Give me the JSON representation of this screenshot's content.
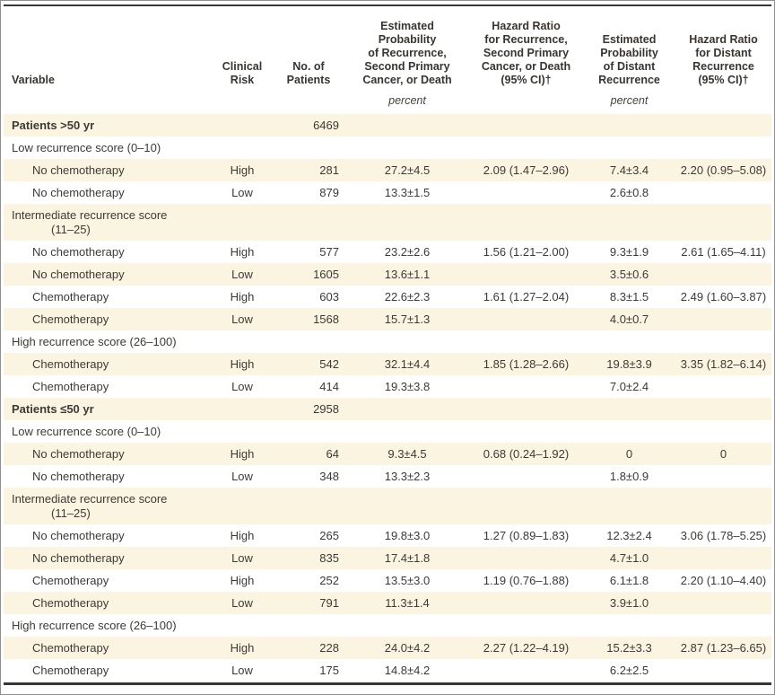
{
  "table": {
    "columns": {
      "variable": "Variable",
      "clinical_risk": "Clinical\nRisk",
      "patients": "No. of\nPatients",
      "ep_recurrence": "Estimated\nProbability\nof Recurrence,\nSecond Primary\nCancer, or Death",
      "hr_recurrence": "Hazard Ratio\nfor Recurrence,\nSecond Primary\nCancer, or Death\n(95% CI)†",
      "ep_distant": "Estimated\nProbability\nof Distant\nRecurrence",
      "hr_distant": "Hazard Ratio\nfor Distant\nRecurrence\n(95% CI)†",
      "unit": "percent"
    },
    "rows": [
      {
        "label": "Patients >50 yr",
        "bold": true,
        "n": "6469",
        "shade": true
      },
      {
        "label": "Low recurrence score (0–10)"
      },
      {
        "label": "No chemotherapy",
        "indent": true,
        "risk": "High",
        "n": "281",
        "ep1": "27.2±4.5",
        "hr1": "2.09 (1.47–2.96)",
        "ep2": "7.4±3.4",
        "hr2": "2.20 (0.95–5.08)",
        "shade": true
      },
      {
        "label": "No chemotherapy",
        "indent": true,
        "risk": "Low",
        "n": "879",
        "ep1": "13.3±1.5",
        "ep2": "2.6±0.8"
      },
      {
        "label": "Intermediate recurrence score",
        "label2": "(11–25)",
        "shade": true
      },
      {
        "label": "No chemotherapy",
        "indent": true,
        "risk": "High",
        "n": "577",
        "ep1": "23.2±2.6",
        "hr1": "1.56 (1.21–2.00)",
        "ep2": "9.3±1.9",
        "hr2": "2.61 (1.65–4.11)"
      },
      {
        "label": "No chemotherapy",
        "indent": true,
        "risk": "Low",
        "n": "1605",
        "ep1": "13.6±1.1",
        "ep2": "3.5±0.6",
        "shade": true
      },
      {
        "label": "Chemotherapy",
        "indent": true,
        "risk": "High",
        "n": "603",
        "ep1": "22.6±2.3",
        "hr1": "1.61 (1.27–2.04)",
        "ep2": "8.3±1.5",
        "hr2": "2.49 (1.60–3.87)"
      },
      {
        "label": "Chemotherapy",
        "indent": true,
        "risk": "Low",
        "n": "1568",
        "ep1": "15.7±1.3",
        "ep2": "4.0±0.7",
        "shade": true
      },
      {
        "label": "High recurrence score (26–100)"
      },
      {
        "label": "Chemotherapy",
        "indent": true,
        "risk": "High",
        "n": "542",
        "ep1": "32.1±4.4",
        "hr1": "1.85 (1.28–2.66)",
        "ep2": "19.8±3.9",
        "hr2": "3.35 (1.82–6.14)",
        "shade": true
      },
      {
        "label": "Chemotherapy",
        "indent": true,
        "risk": "Low",
        "n": "414",
        "ep1": "19.3±3.8",
        "ep2": "7.0±2.4"
      },
      {
        "label": "Patients ≤50 yr",
        "bold": true,
        "n": "2958",
        "shade": true
      },
      {
        "label": "Low recurrence score (0–10)"
      },
      {
        "label": "No chemotherapy",
        "indent": true,
        "risk": "High",
        "n": "64",
        "ep1": "9.3±4.5",
        "hr1": "0.68 (0.24–1.92)",
        "ep2": "0",
        "hr2": "0",
        "shade": true
      },
      {
        "label": "No chemotherapy",
        "indent": true,
        "risk": "Low",
        "n": "348",
        "ep1": "13.3±2.3",
        "ep2": "1.8±0.9"
      },
      {
        "label": "Intermediate recurrence score",
        "label2": "(11–25)",
        "shade": true
      },
      {
        "label": "No chemotherapy",
        "indent": true,
        "risk": "High",
        "n": "265",
        "ep1": "19.8±3.0",
        "hr1": "1.27 (0.89–1.83)",
        "ep2": "12.3±2.4",
        "hr2": "3.06 (1.78–5.25)"
      },
      {
        "label": "No chemotherapy",
        "indent": true,
        "risk": "Low",
        "n": "835",
        "ep1": "17.4±1.8",
        "ep2": "4.7±1.0",
        "shade": true
      },
      {
        "label": "Chemotherapy",
        "indent": true,
        "risk": "High",
        "n": "252",
        "ep1": "13.5±3.0",
        "hr1": "1.19 (0.76–1.88)",
        "ep2": "6.1±1.8",
        "hr2": "2.20 (1.10–4.40)"
      },
      {
        "label": "Chemotherapy",
        "indent": true,
        "risk": "Low",
        "n": "791",
        "ep1": "11.3±1.4",
        "ep2": "3.9±1.0",
        "shade": true
      },
      {
        "label": "High recurrence score (26–100)"
      },
      {
        "label": "Chemotherapy",
        "indent": true,
        "risk": "High",
        "n": "228",
        "ep1": "24.0±4.2",
        "hr1": "2.27 (1.22–4.19)",
        "ep2": "15.2±3.3",
        "hr2": "2.87 (1.23–6.65)",
        "shade": true
      },
      {
        "label": "Chemotherapy",
        "indent": true,
        "risk": "Low",
        "n": "175",
        "ep1": "14.8±4.2",
        "ep2": "6.2±2.5"
      }
    ],
    "colors": {
      "stripe_cream": "#fbf4e1",
      "rule_dark": "#3a3733",
      "text": "#3d3a36",
      "frame_border": "#8f8f8f"
    }
  }
}
